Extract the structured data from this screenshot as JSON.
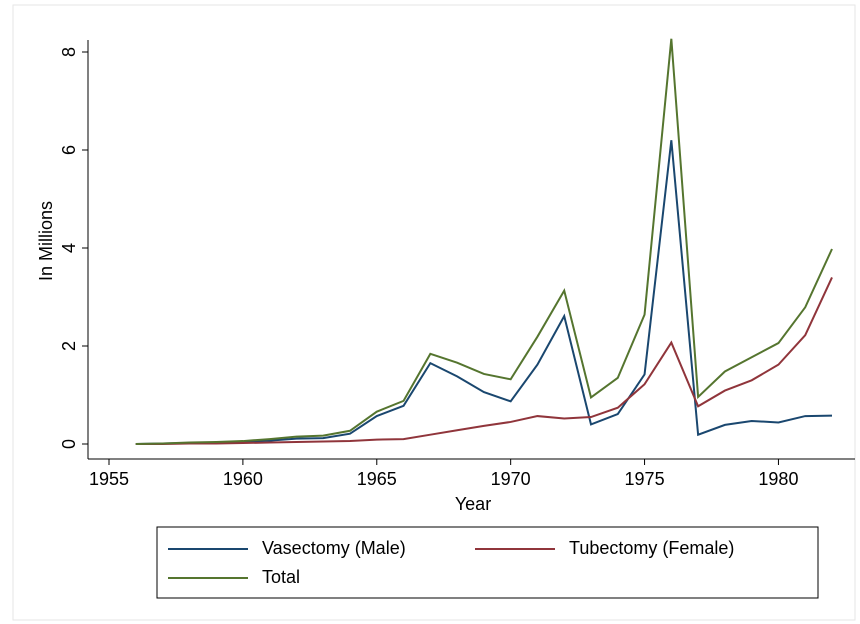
{
  "chart_data": {
    "type": "line",
    "x_label": "Year",
    "y_label": "In Millions",
    "x": [
      1956,
      1957,
      1958,
      1959,
      1960,
      1961,
      1962,
      1963,
      1964,
      1965,
      1966,
      1967,
      1968,
      1969,
      1970,
      1971,
      1972,
      1973,
      1974,
      1975,
      1976,
      1977,
      1978,
      1979,
      1980,
      1981,
      1982
    ],
    "series": [
      {
        "name": "Vasectomy (Male)",
        "color": "#1a476f",
        "values": [
          0.0,
          0.01,
          0.02,
          0.03,
          0.04,
          0.07,
          0.11,
          0.12,
          0.21,
          0.57,
          0.78,
          1.65,
          1.38,
          1.06,
          0.87,
          1.62,
          2.61,
          0.4,
          0.61,
          1.42,
          6.2,
          0.19,
          0.39,
          0.47,
          0.44,
          0.57,
          0.58
        ]
      },
      {
        "name": "Tubectomy (Female)",
        "color": "#90353b",
        "values": [
          0.0,
          0.0,
          0.01,
          0.01,
          0.02,
          0.03,
          0.04,
          0.05,
          0.06,
          0.09,
          0.1,
          0.19,
          0.28,
          0.37,
          0.45,
          0.57,
          0.52,
          0.55,
          0.74,
          1.22,
          2.07,
          0.77,
          1.09,
          1.3,
          1.62,
          2.22,
          3.4
        ]
      },
      {
        "name": "Total",
        "color": "#55752f",
        "values": [
          0.0,
          0.01,
          0.03,
          0.04,
          0.06,
          0.1,
          0.15,
          0.17,
          0.27,
          0.66,
          0.88,
          1.84,
          1.66,
          1.43,
          1.32,
          2.19,
          3.13,
          0.95,
          1.35,
          2.64,
          8.27,
          0.96,
          1.48,
          1.77,
          2.06,
          2.79,
          3.98
        ]
      }
    ],
    "xlim": [
      1955,
      1982
    ],
    "xticks": [
      1955,
      1960,
      1965,
      1970,
      1975,
      1980
    ],
    "ylim": [
      0,
      8
    ],
    "yticks": [
      0,
      2,
      4,
      6,
      8
    ],
    "legend": "bottom"
  }
}
